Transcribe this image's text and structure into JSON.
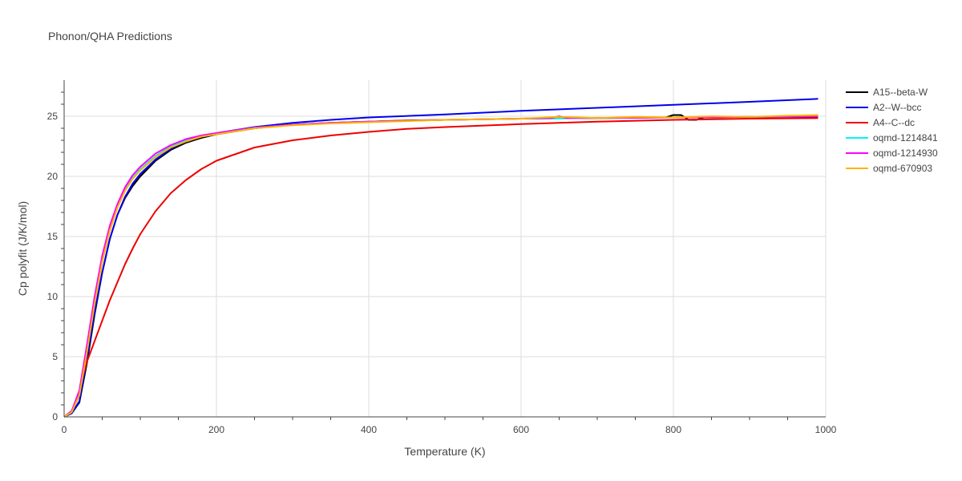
{
  "chart_data": {
    "type": "line",
    "title": "Phonon/QHA Predictions",
    "xlabel": "Temperature (K)",
    "ylabel": "Cp polyfit (J/K/mol)",
    "xlim": [
      0,
      1000
    ],
    "ylim": [
      0,
      28
    ],
    "xticks": [
      0,
      200,
      400,
      600,
      800,
      1000
    ],
    "yticks": [
      0,
      5,
      10,
      15,
      20,
      25
    ],
    "grid": true,
    "legend_position": "right",
    "series": [
      {
        "name": "A15--beta-W",
        "color": "#000000",
        "x": [
          0,
          10,
          20,
          30,
          40,
          50,
          60,
          70,
          80,
          90,
          100,
          120,
          140,
          160,
          180,
          200,
          250,
          300,
          350,
          400,
          450,
          500,
          600,
          700,
          790,
          800,
          810,
          820,
          830,
          840,
          900,
          990
        ],
        "y": [
          0,
          0.3,
          1.2,
          4.5,
          8.5,
          12.0,
          14.8,
          16.8,
          18.2,
          19.2,
          20.0,
          21.3,
          22.2,
          22.8,
          23.2,
          23.5,
          24.0,
          24.3,
          24.45,
          24.55,
          24.65,
          24.7,
          24.8,
          24.85,
          24.9,
          25.1,
          25.1,
          24.7,
          24.7,
          24.9,
          24.95,
          24.95
        ]
      },
      {
        "name": "A2--W--bcc",
        "color": "#0000ee",
        "x": [
          0,
          10,
          20,
          30,
          40,
          50,
          60,
          70,
          80,
          90,
          100,
          120,
          140,
          160,
          180,
          200,
          250,
          300,
          350,
          400,
          500,
          600,
          700,
          800,
          900,
          990
        ],
        "y": [
          0,
          0.3,
          1.3,
          4.8,
          8.7,
          12.0,
          14.8,
          16.8,
          18.3,
          19.4,
          20.2,
          21.4,
          22.3,
          22.9,
          23.3,
          23.6,
          24.1,
          24.45,
          24.7,
          24.9,
          25.15,
          25.45,
          25.7,
          25.95,
          26.2,
          26.45
        ]
      },
      {
        "name": "A4--C--dc",
        "color": "#ee0000",
        "x": [
          0,
          10,
          20,
          25,
          30,
          40,
          50,
          60,
          70,
          80,
          90,
          100,
          120,
          140,
          160,
          180,
          200,
          250,
          300,
          350,
          400,
          450,
          500,
          600,
          700,
          800,
          900,
          990
        ],
        "y": [
          0,
          0.5,
          2.0,
          3.5,
          4.6,
          6.3,
          8.0,
          9.7,
          11.2,
          12.7,
          14.0,
          15.2,
          17.1,
          18.6,
          19.7,
          20.6,
          21.3,
          22.4,
          23.0,
          23.4,
          23.7,
          23.95,
          24.1,
          24.35,
          24.55,
          24.7,
          24.8,
          24.85
        ]
      },
      {
        "name": "oqmd-1214841",
        "color": "#00f5f5",
        "x": [
          0,
          10,
          20,
          30,
          40,
          50,
          60,
          70,
          80,
          90,
          100,
          120,
          140,
          160,
          180,
          200,
          250,
          300,
          350,
          400,
          500,
          600,
          700,
          800,
          900,
          990
        ],
        "y": [
          0,
          0.4,
          1.8,
          5.5,
          9.5,
          13.0,
          15.6,
          17.5,
          18.9,
          19.9,
          20.6,
          21.7,
          22.5,
          23.0,
          23.4,
          23.6,
          24.05,
          24.3,
          24.45,
          24.55,
          24.7,
          24.8,
          24.85,
          24.9,
          24.95,
          25.0
        ]
      },
      {
        "name": "oqmd-1214930",
        "color": "#ff00ff",
        "x": [
          0,
          10,
          20,
          30,
          40,
          50,
          60,
          70,
          80,
          90,
          100,
          120,
          140,
          160,
          180,
          200,
          250,
          300,
          350,
          400,
          500,
          600,
          640,
          650,
          660,
          700,
          800,
          900,
          990
        ],
        "y": [
          0,
          0.5,
          2.2,
          6.0,
          10.0,
          13.4,
          15.9,
          17.7,
          19.1,
          20.1,
          20.8,
          21.9,
          22.6,
          23.1,
          23.4,
          23.6,
          24.05,
          24.3,
          24.45,
          24.55,
          24.7,
          24.8,
          24.85,
          25.0,
          24.85,
          24.85,
          24.9,
          24.95,
          25.0
        ]
      },
      {
        "name": "oqmd-670903",
        "color": "#ffb300",
        "x": [
          0,
          10,
          20,
          30,
          40,
          50,
          60,
          70,
          80,
          90,
          100,
          120,
          140,
          160,
          180,
          200,
          250,
          300,
          350,
          400,
          500,
          600,
          650,
          700,
          750,
          800,
          850,
          900,
          950,
          990
        ],
        "y": [
          0,
          0.4,
          1.8,
          5.4,
          9.4,
          12.9,
          15.5,
          17.4,
          18.8,
          19.8,
          20.5,
          21.6,
          22.4,
          22.9,
          23.3,
          23.5,
          24.0,
          24.25,
          24.4,
          24.5,
          24.7,
          24.8,
          24.95,
          24.85,
          24.95,
          24.9,
          25.0,
          24.95,
          25.05,
          25.1
        ]
      }
    ]
  }
}
